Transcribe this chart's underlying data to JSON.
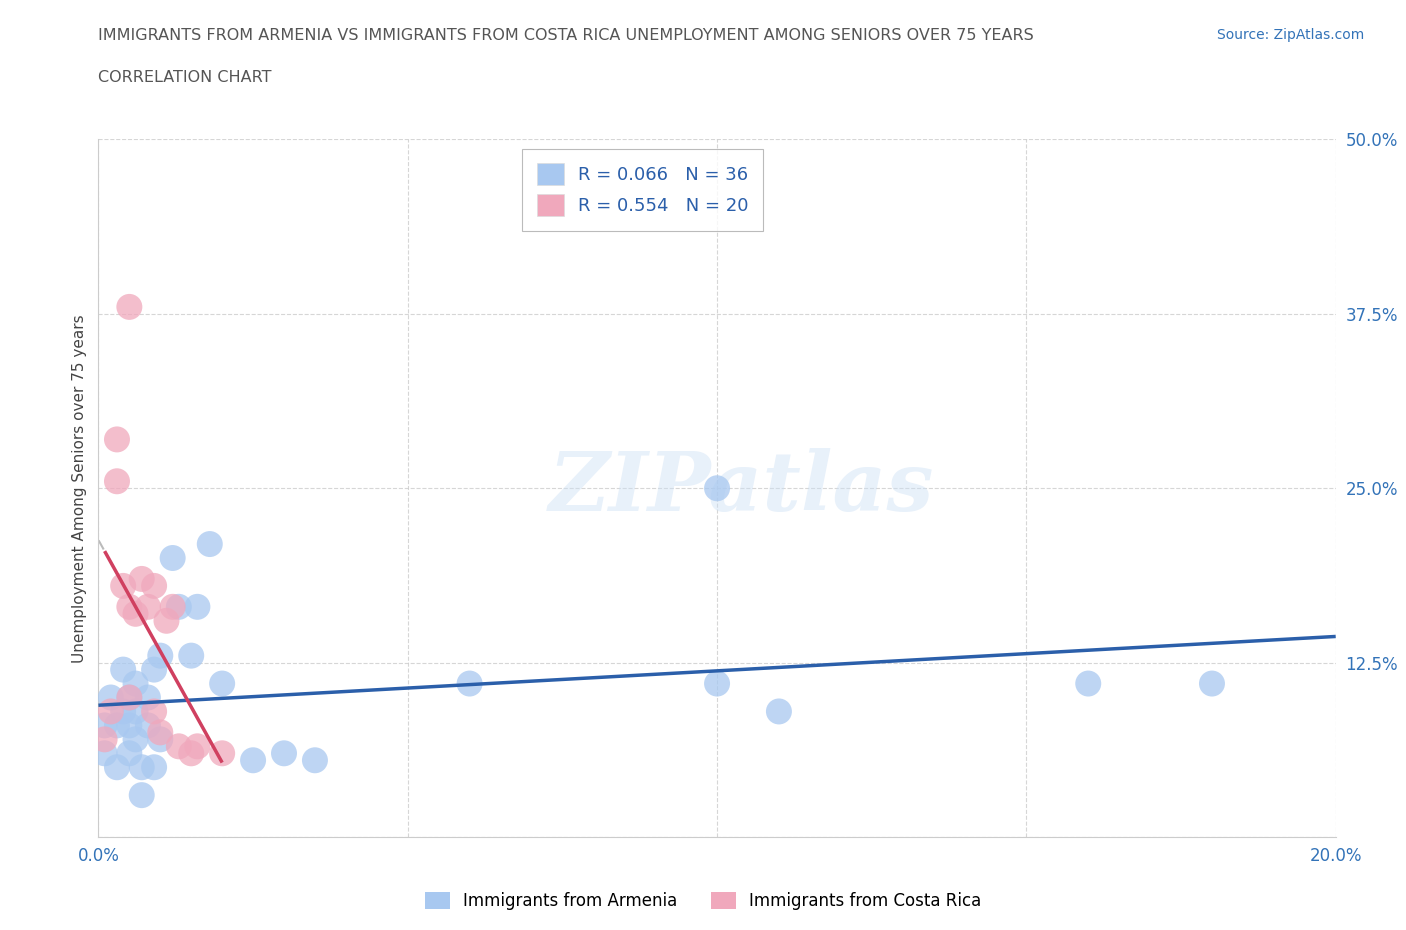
{
  "title_line1": "IMMIGRANTS FROM ARMENIA VS IMMIGRANTS FROM COSTA RICA UNEMPLOYMENT AMONG SENIORS OVER 75 YEARS",
  "title_line2": "CORRELATION CHART",
  "source": "Source: ZipAtlas.com",
  "ylabel": "Unemployment Among Seniors over 75 years",
  "xlim": [
    0.0,
    0.2
  ],
  "ylim": [
    0.0,
    0.5
  ],
  "xticks": [
    0.0,
    0.05,
    0.1,
    0.15,
    0.2
  ],
  "xticklabels": [
    "0.0%",
    "",
    "",
    "",
    "20.0%"
  ],
  "yticks": [
    0.0,
    0.125,
    0.25,
    0.375,
    0.5
  ],
  "yticklabels": [
    "",
    "12.5%",
    "25.0%",
    "37.5%",
    "50.0%"
  ],
  "armenia_R": 0.066,
  "armenia_N": 36,
  "costarica_R": 0.554,
  "costarica_N": 20,
  "armenia_color": "#a8c8f0",
  "armenia_color_line": "#2b5faa",
  "costarica_color": "#f0a8bc",
  "costarica_color_line": "#d04060",
  "legend_armenia_label": "Immigrants from Armenia",
  "legend_costarica_label": "Immigrants from Costa Rica",
  "watermark": "ZIPatlas",
  "armenia_x": [
    0.001,
    0.001,
    0.002,
    0.003,
    0.003,
    0.004,
    0.004,
    0.005,
    0.005,
    0.005,
    0.006,
    0.006,
    0.006,
    0.007,
    0.007,
    0.008,
    0.008,
    0.009,
    0.009,
    0.01,
    0.01,
    0.012,
    0.013,
    0.015,
    0.016,
    0.018,
    0.02,
    0.025,
    0.03,
    0.035,
    0.06,
    0.1,
    0.11,
    0.16,
    0.18,
    0.1
  ],
  "armenia_y": [
    0.08,
    0.06,
    0.1,
    0.08,
    0.05,
    0.12,
    0.09,
    0.1,
    0.08,
    0.06,
    0.11,
    0.09,
    0.07,
    0.05,
    0.03,
    0.1,
    0.08,
    0.12,
    0.05,
    0.07,
    0.13,
    0.2,
    0.165,
    0.13,
    0.165,
    0.21,
    0.11,
    0.055,
    0.06,
    0.055,
    0.11,
    0.11,
    0.09,
    0.11,
    0.11,
    0.25
  ],
  "costarica_x": [
    0.001,
    0.002,
    0.003,
    0.003,
    0.004,
    0.005,
    0.005,
    0.006,
    0.007,
    0.008,
    0.009,
    0.009,
    0.01,
    0.011,
    0.012,
    0.013,
    0.015,
    0.016,
    0.02,
    0.005
  ],
  "costarica_y": [
    0.07,
    0.09,
    0.255,
    0.285,
    0.18,
    0.1,
    0.165,
    0.16,
    0.185,
    0.165,
    0.18,
    0.09,
    0.075,
    0.155,
    0.165,
    0.065,
    0.06,
    0.065,
    0.06,
    0.38
  ]
}
